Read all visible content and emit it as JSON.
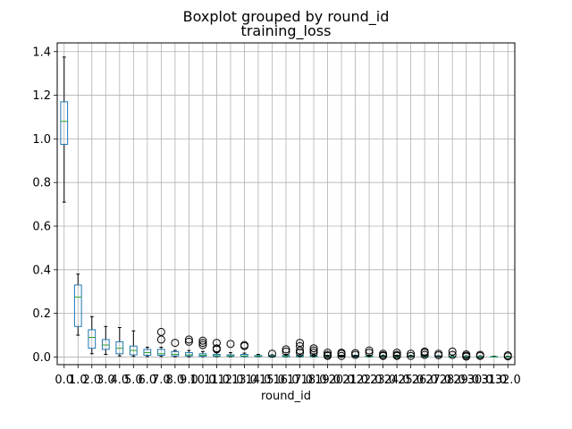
{
  "chart_data": {
    "type": "boxplot",
    "suptitle": "Boxplot grouped by round_id",
    "title": "training_loss",
    "xlabel": "round_id",
    "ylabel": "",
    "ylim": [
      -0.035,
      1.44
    ],
    "yticks": [
      0.0,
      0.2,
      0.4,
      0.6,
      0.8,
      1.0,
      1.2,
      1.4
    ],
    "ytick_labels": [
      "0.0",
      "0.2",
      "0.4",
      "0.6",
      "0.8",
      "1.0",
      "1.2",
      "1.4"
    ],
    "grid": true,
    "colors": {
      "box": "#1f77b4",
      "median": "#2ca02c",
      "whisker": "#000000",
      "grid": "#b0b0b0",
      "flier": "#000000"
    },
    "categories": [
      "0.0",
      "1.0",
      "2.0",
      "3.0",
      "4.0",
      "5.0",
      "6.0",
      "7.0",
      "8.0",
      "9.0",
      "10.0",
      "11.0",
      "12.0",
      "13.0",
      "14.0",
      "15.0",
      "16.0",
      "17.0",
      "18.0",
      "19.0",
      "20.0",
      "21.0",
      "22.0",
      "23.0",
      "24.0",
      "25.0",
      "26.0",
      "27.0",
      "28.0",
      "29.0",
      "30.0",
      "31.0",
      "32.0"
    ],
    "boxes": [
      {
        "q1": 0.975,
        "median": 1.08,
        "q3": 1.17,
        "whislo": 0.71,
        "whishi": 1.375,
        "fliers": []
      },
      {
        "q1": 0.14,
        "median": 0.275,
        "q3": 0.33,
        "whislo": 0.1,
        "whishi": 0.38,
        "fliers": []
      },
      {
        "q1": 0.04,
        "median": 0.09,
        "q3": 0.125,
        "whislo": 0.015,
        "whishi": 0.185,
        "fliers": []
      },
      {
        "q1": 0.035,
        "median": 0.055,
        "q3": 0.08,
        "whislo": 0.012,
        "whishi": 0.14,
        "fliers": []
      },
      {
        "q1": 0.015,
        "median": 0.04,
        "q3": 0.07,
        "whislo": 0.005,
        "whishi": 0.135,
        "fliers": []
      },
      {
        "q1": 0.01,
        "median": 0.03,
        "q3": 0.05,
        "whislo": 0.003,
        "whishi": 0.12,
        "fliers": []
      },
      {
        "q1": 0.008,
        "median": 0.02,
        "q3": 0.035,
        "whislo": 0.002,
        "whishi": 0.045,
        "fliers": []
      },
      {
        "q1": 0.008,
        "median": 0.015,
        "q3": 0.035,
        "whislo": 0.002,
        "whishi": 0.045,
        "fliers": [
          0.115,
          0.08
        ]
      },
      {
        "q1": 0.005,
        "median": 0.012,
        "q3": 0.025,
        "whislo": 0.001,
        "whishi": 0.03,
        "fliers": [
          0.065
        ]
      },
      {
        "q1": 0.005,
        "median": 0.01,
        "q3": 0.02,
        "whislo": 0.001,
        "whishi": 0.03,
        "fliers": [
          0.08,
          0.07
        ]
      },
      {
        "q1": 0.003,
        "median": 0.008,
        "q3": 0.015,
        "whislo": 0.001,
        "whishi": 0.025,
        "fliers": [
          0.075,
          0.065,
          0.055
        ]
      },
      {
        "q1": 0.003,
        "median": 0.006,
        "q3": 0.012,
        "whislo": 0.001,
        "whishi": 0.02,
        "fliers": [
          0.065,
          0.04,
          0.035
        ]
      },
      {
        "q1": 0.003,
        "median": 0.005,
        "q3": 0.01,
        "whislo": 0.001,
        "whishi": 0.02,
        "fliers": [
          0.06
        ]
      },
      {
        "q1": 0.002,
        "median": 0.005,
        "q3": 0.012,
        "whislo": 0.001,
        "whishi": 0.018,
        "fliers": [
          0.055,
          0.05
        ]
      },
      {
        "q1": 0.002,
        "median": 0.004,
        "q3": 0.007,
        "whislo": 0.001,
        "whishi": 0.012,
        "fliers": []
      },
      {
        "q1": 0.001,
        "median": 0.003,
        "q3": 0.006,
        "whislo": 0.0,
        "whishi": 0.01,
        "fliers": [
          0.015
        ]
      },
      {
        "q1": 0.001,
        "median": 0.003,
        "q3": 0.007,
        "whislo": 0.0,
        "whishi": 0.012,
        "fliers": [
          0.035,
          0.025
        ]
      },
      {
        "q1": 0.001,
        "median": 0.003,
        "q3": 0.007,
        "whislo": 0.0,
        "whishi": 0.012,
        "fliers": [
          0.065,
          0.05,
          0.03,
          0.02
        ]
      },
      {
        "q1": 0.001,
        "median": 0.003,
        "q3": 0.006,
        "whislo": 0.0,
        "whishi": 0.01,
        "fliers": [
          0.04,
          0.03,
          0.02
        ]
      },
      {
        "q1": 0.001,
        "median": 0.002,
        "q3": 0.005,
        "whislo": 0.0,
        "whishi": 0.008,
        "fliers": [
          0.02,
          0.01,
          0.005
        ]
      },
      {
        "q1": 0.001,
        "median": 0.002,
        "q3": 0.005,
        "whislo": 0.0,
        "whishi": 0.008,
        "fliers": [
          0.02,
          0.015,
          0.005
        ]
      },
      {
        "q1": 0.001,
        "median": 0.002,
        "q3": 0.005,
        "whislo": 0.0,
        "whishi": 0.008,
        "fliers": [
          0.018,
          0.01
        ]
      },
      {
        "q1": 0.001,
        "median": 0.002,
        "q3": 0.005,
        "whislo": 0.0,
        "whishi": 0.008,
        "fliers": [
          0.03,
          0.02
        ]
      },
      {
        "q1": 0.001,
        "median": 0.002,
        "q3": 0.004,
        "whislo": 0.0,
        "whishi": 0.008,
        "fliers": [
          0.015,
          0.008,
          0.005
        ]
      },
      {
        "q1": 0.001,
        "median": 0.002,
        "q3": 0.004,
        "whislo": 0.0,
        "whishi": 0.008,
        "fliers": [
          0.02,
          0.01,
          0.005
        ]
      },
      {
        "q1": 0.001,
        "median": 0.002,
        "q3": 0.004,
        "whislo": 0.0,
        "whishi": 0.008,
        "fliers": [
          0.015,
          0.005
        ]
      },
      {
        "q1": 0.001,
        "median": 0.002,
        "q3": 0.004,
        "whislo": 0.0,
        "whishi": 0.008,
        "fliers": [
          0.025,
          0.02,
          0.01
        ]
      },
      {
        "q1": 0.0,
        "median": 0.001,
        "q3": 0.003,
        "whislo": 0.0,
        "whishi": 0.006,
        "fliers": [
          0.015,
          0.008
        ]
      },
      {
        "q1": 0.0,
        "median": 0.001,
        "q3": 0.003,
        "whislo": 0.0,
        "whishi": 0.006,
        "fliers": [
          0.025,
          0.01
        ]
      },
      {
        "q1": 0.0,
        "median": 0.001,
        "q3": 0.003,
        "whislo": 0.0,
        "whishi": 0.005,
        "fliers": [
          0.012,
          0.006,
          0.002
        ]
      },
      {
        "q1": 0.0,
        "median": 0.001,
        "q3": 0.003,
        "whislo": 0.0,
        "whishi": 0.005,
        "fliers": [
          0.01,
          0.005
        ]
      },
      {
        "q1": 0.0,
        "median": 0.001,
        "q3": 0.002,
        "whislo": 0.0,
        "whishi": 0.004,
        "fliers": []
      },
      {
        "q1": 0.0,
        "median": 0.001,
        "q3": 0.002,
        "whislo": 0.0,
        "whishi": 0.004,
        "fliers": [
          0.008,
          0.003
        ]
      }
    ]
  }
}
